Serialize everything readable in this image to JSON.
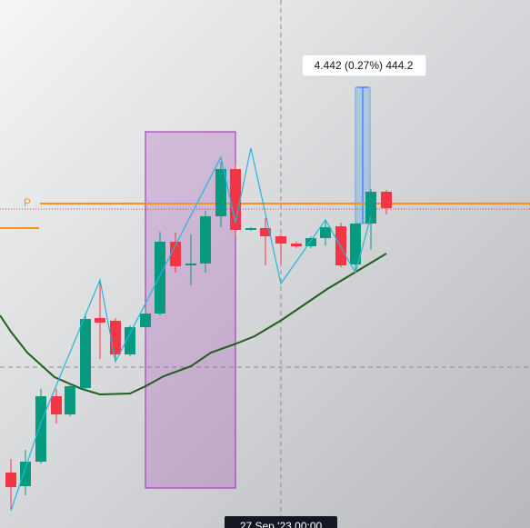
{
  "measure_label": "4.442 (0.27%) 444.2",
  "line_label": "P",
  "crosshair_time": "27 Sep '23  00:00"
}
